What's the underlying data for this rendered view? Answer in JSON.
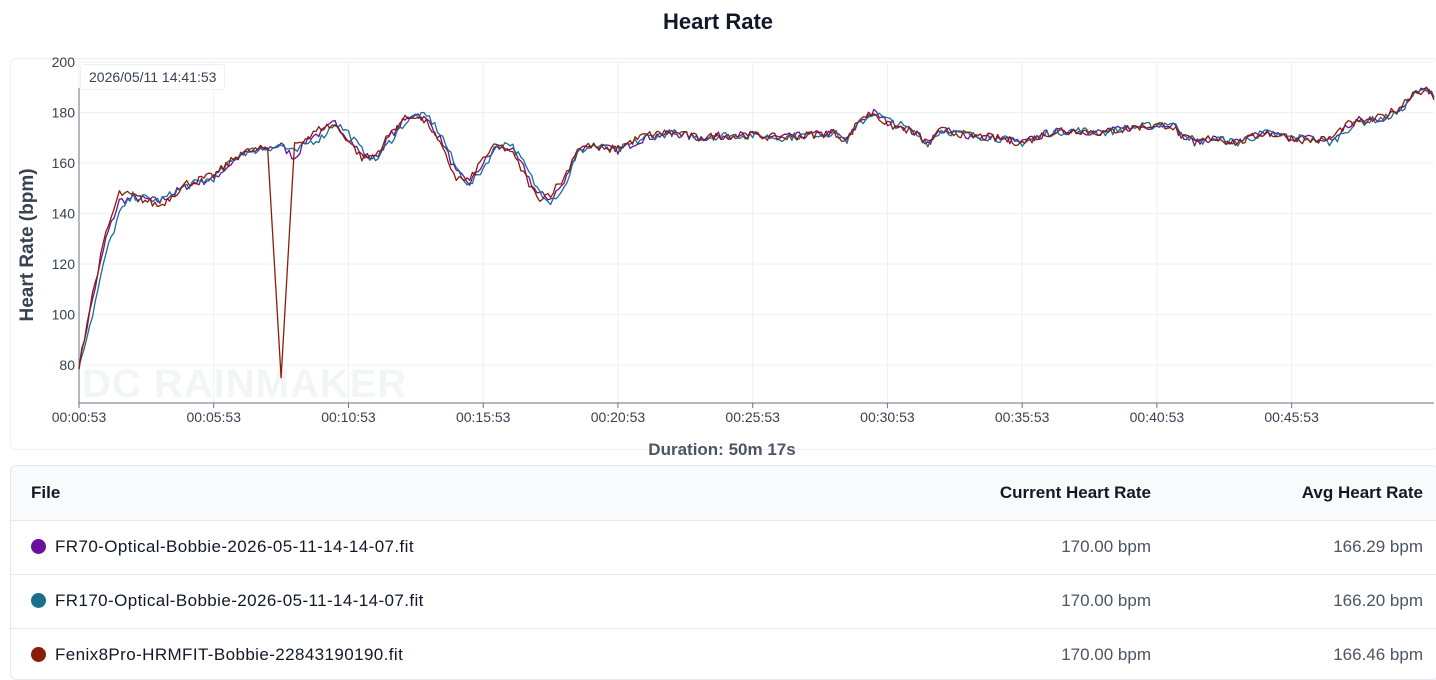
{
  "title": "Heart Rate",
  "tooltip_time": "2026/05/11 14:41:53",
  "duration_label": "Duration: 50m 17s",
  "watermark": "DC RAINMAKER",
  "chart_data": {
    "type": "line",
    "ylabel": "Heart Rate (bpm)",
    "xlabel": "",
    "x_unit": "elapsed time (h:mm:ss)",
    "xlim": [
      "00:00:53",
      "00:51:10"
    ],
    "ylim": [
      65,
      200
    ],
    "y_ticks": [
      80,
      100,
      120,
      140,
      160,
      180,
      200
    ],
    "x_ticks": [
      "00:00:53",
      "00:05:53",
      "00:10:53",
      "00:15:53",
      "00:20:53",
      "00:25:53",
      "00:30:53",
      "00:35:53",
      "00:40:53",
      "00:45:53"
    ],
    "grid": true,
    "x": [
      "00:00:53",
      "00:01:23",
      "00:01:53",
      "00:02:23",
      "00:02:53",
      "00:03:53",
      "00:04:53",
      "00:05:53",
      "00:06:53",
      "00:07:53",
      "00:08:23",
      "00:08:53",
      "00:09:23",
      "00:09:53",
      "00:10:23",
      "00:10:53",
      "00:11:23",
      "00:11:53",
      "00:12:23",
      "00:12:53",
      "00:13:23",
      "00:13:53",
      "00:14:23",
      "00:14:53",
      "00:15:23",
      "00:15:53",
      "00:16:23",
      "00:16:53",
      "00:17:23",
      "00:17:53",
      "00:18:23",
      "00:18:53",
      "00:19:23",
      "00:19:53",
      "00:20:23",
      "00:20:53",
      "00:21:53",
      "00:22:53",
      "00:23:53",
      "00:24:53",
      "00:25:53",
      "00:26:53",
      "00:27:53",
      "00:28:53",
      "00:29:23",
      "00:29:53",
      "00:30:23",
      "00:30:53",
      "00:31:23",
      "00:31:53",
      "00:32:23",
      "00:32:53",
      "00:33:53",
      "00:34:53",
      "00:35:53",
      "00:36:53",
      "00:37:53",
      "00:38:53",
      "00:39:53",
      "00:40:53",
      "00:41:23",
      "00:41:53",
      "00:42:23",
      "00:42:53",
      "00:43:53",
      "00:44:53",
      "00:45:23",
      "00:45:53",
      "00:46:23",
      "00:46:53",
      "00:47:23",
      "00:47:53",
      "00:48:23",
      "00:48:53",
      "00:49:23",
      "00:49:53",
      "00:50:23",
      "00:50:53",
      "00:51:10"
    ],
    "series": [
      {
        "name": "FR70-Optical-Bobbie-2026-05-11-14-14-07.fit",
        "color": "#6b0f9e",
        "values": [
          80,
          106,
          130,
          145,
          146,
          145,
          151,
          154,
          163,
          166,
          167,
          162,
          170,
          172,
          176,
          170,
          163,
          162,
          170,
          176,
          180,
          176,
          168,
          156,
          152,
          160,
          166,
          166,
          158,
          148,
          146,
          152,
          165,
          167,
          166,
          165,
          170,
          172,
          170,
          171,
          171,
          170,
          171,
          172,
          169,
          177,
          180,
          176,
          175,
          172,
          168,
          173,
          171,
          170,
          168,
          172,
          173,
          172,
          174,
          175,
          176,
          170,
          168,
          170,
          168,
          172,
          171,
          170,
          170,
          169,
          169,
          174,
          177,
          177,
          178,
          181,
          188,
          190,
          186
        ]
      },
      {
        "name": "FR170-Optical-Bobbie-2026-05-11-14-14-07.fit",
        "color": "#1a6e8e",
        "values": [
          80,
          100,
          124,
          140,
          147,
          145,
          151,
          154,
          164,
          166,
          167,
          164,
          168,
          170,
          176,
          172,
          165,
          161,
          168,
          175,
          179,
          178,
          170,
          158,
          151,
          158,
          167,
          168,
          160,
          150,
          145,
          150,
          164,
          167,
          166,
          165,
          170,
          172,
          170,
          171,
          171,
          170,
          171,
          172,
          169,
          176,
          180,
          177,
          175,
          172,
          168,
          173,
          171,
          170,
          168,
          172,
          173,
          172,
          174,
          175,
          176,
          172,
          168,
          170,
          168,
          172,
          171,
          170,
          170,
          169,
          168,
          173,
          176,
          177,
          178,
          180,
          187,
          189,
          186
        ]
      },
      {
        "name": "Fenix8Pro-HRMFIT-Bobbie-22843190190.fit",
        "color": "#8b1d06",
        "values": [
          80,
          108,
          132,
          148,
          147,
          143,
          152,
          155,
          164,
          166,
          75,
          168,
          170,
          174,
          175,
          169,
          162,
          163,
          171,
          177,
          179,
          175,
          165,
          154,
          153,
          162,
          167,
          165,
          156,
          146,
          148,
          154,
          166,
          167,
          165,
          166,
          171,
          172,
          170,
          171,
          171,
          170,
          171,
          172,
          169,
          178,
          180,
          175,
          174,
          172,
          168,
          173,
          171,
          170,
          168,
          172,
          173,
          172,
          174,
          175,
          175,
          170,
          168,
          170,
          168,
          172,
          171,
          170,
          169,
          169,
          170,
          175,
          176,
          177,
          179,
          182,
          188,
          189,
          185
        ]
      }
    ]
  },
  "table": {
    "headers": {
      "file": "File",
      "current": "Current Heart Rate",
      "avg": "Avg Heart Rate"
    },
    "rows": [
      {
        "file": "FR70-Optical-Bobbie-2026-05-11-14-14-07.fit",
        "color": "#6b0f9e",
        "current": "170.00 bpm",
        "avg": "166.29 bpm"
      },
      {
        "file": "FR170-Optical-Bobbie-2026-05-11-14-14-07.fit",
        "color": "#1a6e8e",
        "current": "170.00 bpm",
        "avg": "166.20 bpm"
      },
      {
        "file": "Fenix8Pro-HRMFIT-Bobbie-22843190190.fit",
        "color": "#8b1d06",
        "current": "170.00 bpm",
        "avg": "166.46 bpm"
      }
    ]
  }
}
